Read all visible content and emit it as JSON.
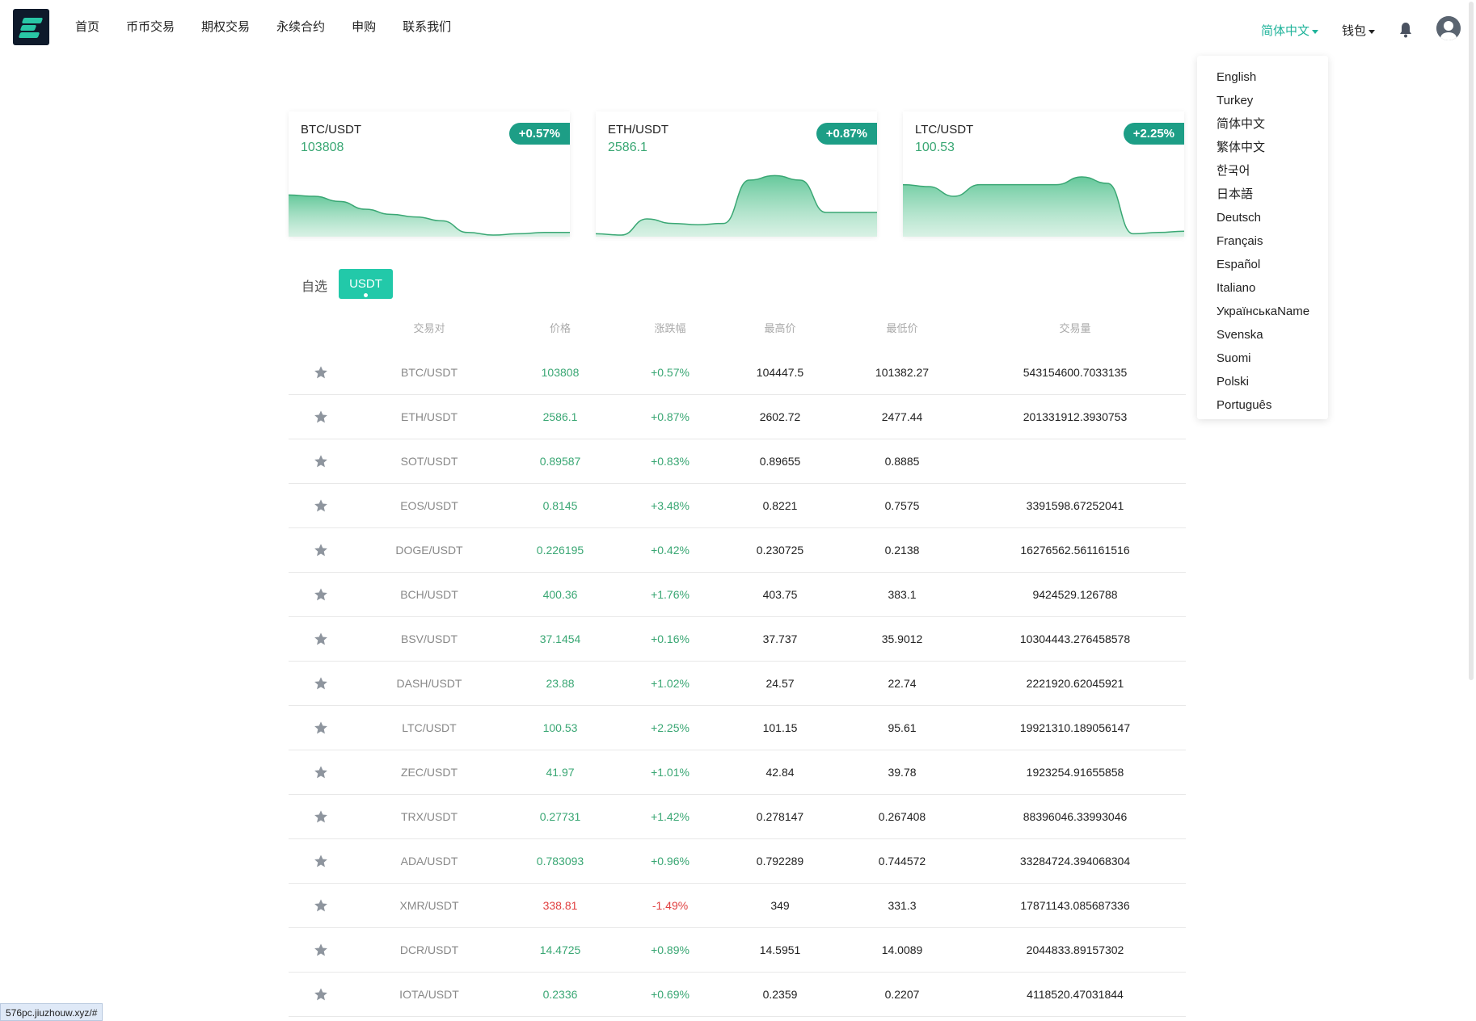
{
  "nav": {
    "items": [
      {
        "label": "首页"
      },
      {
        "label": "币币交易"
      },
      {
        "label": "期权交易"
      },
      {
        "label": "永续合约"
      },
      {
        "label": "申购"
      },
      {
        "label": "联系我们"
      }
    ]
  },
  "header": {
    "language": "简体中文",
    "wallet": "钱包",
    "bell_icon": "bell-icon",
    "avatar_icon": "user-avatar-icon"
  },
  "language_menu": [
    "English",
    "Turkey",
    "简体中文",
    "繁体中文",
    "한국어",
    "日本語",
    "Deutsch",
    "Français",
    "Español",
    "Italiano",
    "УкраїнськаName",
    "Svenska",
    "Suomi",
    "Polski",
    "Português"
  ],
  "cards": [
    {
      "pair": "BTC/USDT",
      "price": "103808",
      "change": "+0.57%",
      "trend": [
        0.62,
        0.6,
        0.52,
        0.4,
        0.32,
        0.28,
        0.22,
        0.04,
        0.0,
        0.02,
        0.04,
        0.04
      ]
    },
    {
      "pair": "ETH/USDT",
      "price": "2586.1",
      "change": "+0.87%",
      "trend": [
        0.02,
        0.0,
        0.25,
        0.18,
        0.16,
        0.18,
        0.85,
        0.92,
        0.85,
        0.35,
        0.35,
        0.35
      ]
    },
    {
      "pair": "LTC/USDT",
      "price": "100.53",
      "change": "+2.25%",
      "trend": [
        0.78,
        0.75,
        0.6,
        0.78,
        0.78,
        0.78,
        0.78,
        0.9,
        0.8,
        0.02,
        0.04,
        0.06
      ]
    }
  ],
  "tabs": {
    "favorites": "自选",
    "active": "USDT"
  },
  "table": {
    "headers": [
      "交易对",
      "价格",
      "涨跌幅",
      "最高价",
      "最低价",
      "交易量"
    ],
    "rows": [
      {
        "pair": "BTC/USDT",
        "price": "103808",
        "change": "+0.57%",
        "high": "104447.5",
        "low": "101382.27",
        "volume": "543154600.7033135",
        "dir": "up"
      },
      {
        "pair": "ETH/USDT",
        "price": "2586.1",
        "change": "+0.87%",
        "high": "2602.72",
        "low": "2477.44",
        "volume": "201331912.3930753",
        "dir": "up"
      },
      {
        "pair": "SOT/USDT",
        "price": "0.89587",
        "change": "+0.83%",
        "high": "0.89655",
        "low": "0.8885",
        "volume": "",
        "dir": "up"
      },
      {
        "pair": "EOS/USDT",
        "price": "0.8145",
        "change": "+3.48%",
        "high": "0.8221",
        "low": "0.7575",
        "volume": "3391598.67252041",
        "dir": "up"
      },
      {
        "pair": "DOGE/USDT",
        "price": "0.226195",
        "change": "+0.42%",
        "high": "0.230725",
        "low": "0.2138",
        "volume": "16276562.561161516",
        "dir": "up"
      },
      {
        "pair": "BCH/USDT",
        "price": "400.36",
        "change": "+1.76%",
        "high": "403.75",
        "low": "383.1",
        "volume": "9424529.126788",
        "dir": "up"
      },
      {
        "pair": "BSV/USDT",
        "price": "37.1454",
        "change": "+0.16%",
        "high": "37.737",
        "low": "35.9012",
        "volume": "10304443.276458578",
        "dir": "up"
      },
      {
        "pair": "DASH/USDT",
        "price": "23.88",
        "change": "+1.02%",
        "high": "24.57",
        "low": "22.74",
        "volume": "2221920.62045921",
        "dir": "up"
      },
      {
        "pair": "LTC/USDT",
        "price": "100.53",
        "change": "+2.25%",
        "high": "101.15",
        "low": "95.61",
        "volume": "19921310.189056147",
        "dir": "up"
      },
      {
        "pair": "ZEC/USDT",
        "price": "41.97",
        "change": "+1.01%",
        "high": "42.84",
        "low": "39.78",
        "volume": "1923254.91655858",
        "dir": "up"
      },
      {
        "pair": "TRX/USDT",
        "price": "0.27731",
        "change": "+1.42%",
        "high": "0.278147",
        "low": "0.267408",
        "volume": "88396046.33993046",
        "dir": "up"
      },
      {
        "pair": "ADA/USDT",
        "price": "0.783093",
        "change": "+0.96%",
        "high": "0.792289",
        "low": "0.744572",
        "volume": "33284724.394068304",
        "dir": "up"
      },
      {
        "pair": "XMR/USDT",
        "price": "338.81",
        "change": "-1.49%",
        "high": "349",
        "low": "331.3",
        "volume": "17871143.085687336",
        "dir": "down"
      },
      {
        "pair": "DCR/USDT",
        "price": "14.4725",
        "change": "+0.89%",
        "high": "14.5951",
        "low": "14.0089",
        "volume": "2044833.89157302",
        "dir": "up"
      },
      {
        "pair": "IOTA/USDT",
        "price": "0.2336",
        "change": "+0.69%",
        "high": "0.2359",
        "low": "0.2207",
        "volume": "4118520.47031844",
        "dir": "up"
      }
    ]
  },
  "status_url": "576pc.jiuzhouw.xyz/#",
  "colors": {
    "accent": "#22c9a9",
    "up": "#3aa774",
    "down": "#e04040",
    "badge": "#1d9e86"
  }
}
